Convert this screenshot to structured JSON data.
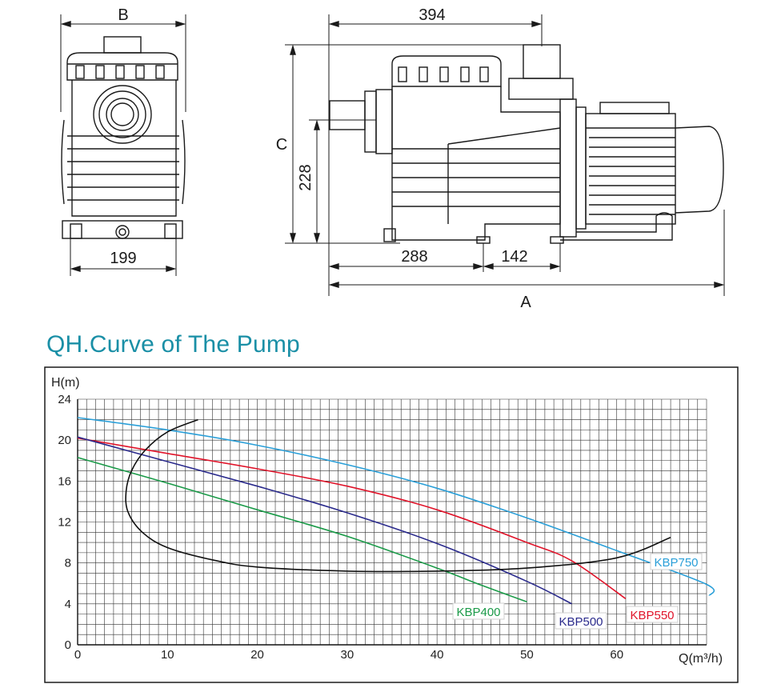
{
  "drawing": {
    "dims": {
      "b": "B",
      "front_width": "199",
      "total_length": "394",
      "c": "C",
      "height": "228",
      "inlet": "288",
      "base": "142",
      "a": "A"
    }
  },
  "title": "QH.Curve of The Pump",
  "chart_data": {
    "type": "line",
    "xlabel": "Q(m³/h)",
    "ylabel": "H(m)",
    "xlim": [
      0,
      70
    ],
    "ylim": [
      0,
      24
    ],
    "x_ticks": [
      0,
      10,
      20,
      30,
      40,
      50,
      60
    ],
    "y_ticks": [
      0,
      4,
      8,
      12,
      16,
      20,
      24
    ],
    "grid": true,
    "series": [
      {
        "name": "KBP750",
        "color": "#2a9fd8",
        "points": [
          [
            0,
            22.2
          ],
          [
            10,
            21.0
          ],
          [
            20,
            19.5
          ],
          [
            30,
            17.6
          ],
          [
            40,
            15.3
          ],
          [
            50,
            12.4
          ],
          [
            60,
            9.2
          ],
          [
            70,
            5.9
          ],
          [
            70.3,
            4.8
          ]
        ]
      },
      {
        "name": "KBP550",
        "color": "#e0142a",
        "points": [
          [
            0,
            20.2
          ],
          [
            10,
            18.7
          ],
          [
            20,
            17.2
          ],
          [
            30,
            15.5
          ],
          [
            40,
            13.2
          ],
          [
            50,
            10.0
          ],
          [
            55,
            8.2
          ],
          [
            61,
            4.5
          ]
        ]
      },
      {
        "name": "KBP500",
        "color": "#2a2a8c",
        "points": [
          [
            0,
            20.3
          ],
          [
            10,
            17.9
          ],
          [
            20,
            15.5
          ],
          [
            30,
            12.9
          ],
          [
            40,
            9.9
          ],
          [
            50,
            6.2
          ],
          [
            55,
            4.0
          ]
        ]
      },
      {
        "name": "KBP400",
        "color": "#1a9a48",
        "points": [
          [
            0,
            18.3
          ],
          [
            10,
            15.8
          ],
          [
            20,
            13.2
          ],
          [
            30,
            10.6
          ],
          [
            40,
            7.5
          ],
          [
            45,
            5.8
          ],
          [
            50,
            4.2
          ]
        ]
      },
      {
        "name": "",
        "color": "#111111",
        "points": [
          [
            13.4,
            22.0
          ],
          [
            10,
            20.8
          ],
          [
            7.5,
            19.0
          ],
          [
            6,
            17.0
          ],
          [
            5.4,
            15.0
          ],
          [
            5.6,
            13.0
          ],
          [
            7.2,
            11.0
          ],
          [
            10,
            9.5
          ],
          [
            15,
            8.3
          ],
          [
            20,
            7.6
          ],
          [
            30,
            7.2
          ],
          [
            40,
            7.2
          ],
          [
            50,
            7.5
          ],
          [
            60,
            8.5
          ],
          [
            66,
            10.5
          ]
        ]
      }
    ]
  }
}
